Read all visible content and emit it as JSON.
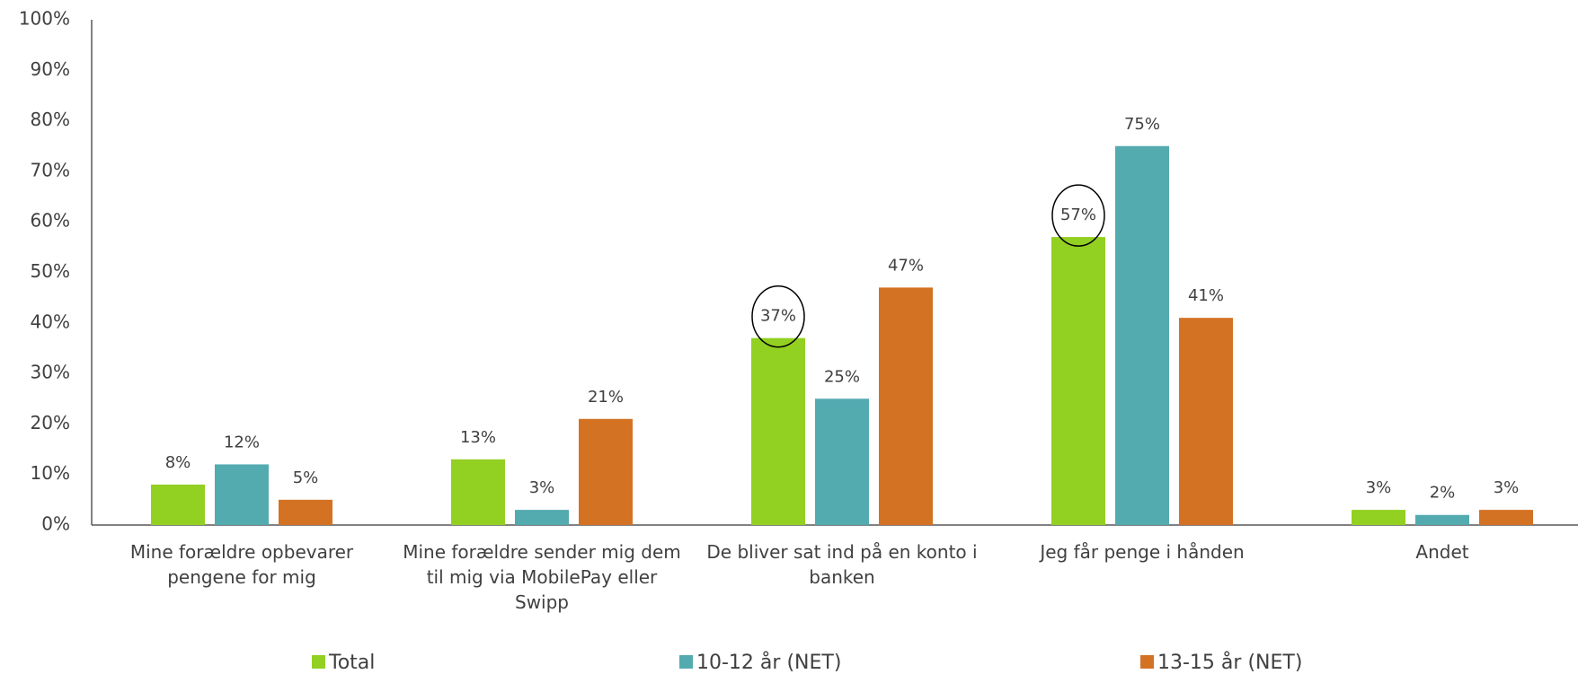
{
  "chart_data": {
    "type": "bar",
    "categories": [
      "Mine forældre opbevarer pengene for mig",
      "Mine forældre sender mig dem til mig via MobilePay eller Swipp",
      "De bliver sat ind på en konto i banken",
      "Jeg får penge i hånden",
      "Andet"
    ],
    "series": [
      {
        "name": "Total",
        "color": "#92d022",
        "values": [
          8,
          13,
          37,
          57,
          3
        ],
        "value_labels": [
          "8%",
          "13%",
          "37%",
          "57%",
          "3%"
        ]
      },
      {
        "name": "10-12 år (NET)",
        "color": "#53abb0",
        "values": [
          12,
          3,
          25,
          75,
          2
        ],
        "value_labels": [
          "12%",
          "3%",
          "25%",
          "75%",
          "2%"
        ]
      },
      {
        "name": "13-15 år (NET)",
        "color": "#d47224",
        "values": [
          5,
          21,
          47,
          41,
          3
        ],
        "value_labels": [
          "5%",
          "21%",
          "47%",
          "41%",
          "3%"
        ]
      }
    ],
    "ylim": [
      0,
      100
    ],
    "yticks": [
      {
        "value": 0,
        "label": "0%"
      },
      {
        "value": 10,
        "label": "10%"
      },
      {
        "value": 20,
        "label": "20%"
      },
      {
        "value": 30,
        "label": "30%"
      },
      {
        "value": 40,
        "label": "40%"
      },
      {
        "value": 50,
        "label": "50%"
      },
      {
        "value": 60,
        "label": "60%"
      },
      {
        "value": 70,
        "label": "70%"
      },
      {
        "value": 80,
        "label": "80%"
      },
      {
        "value": 90,
        "label": "90%"
      },
      {
        "value": 100,
        "label": "100%"
      }
    ],
    "grid": false,
    "legend": "bottom"
  }
}
